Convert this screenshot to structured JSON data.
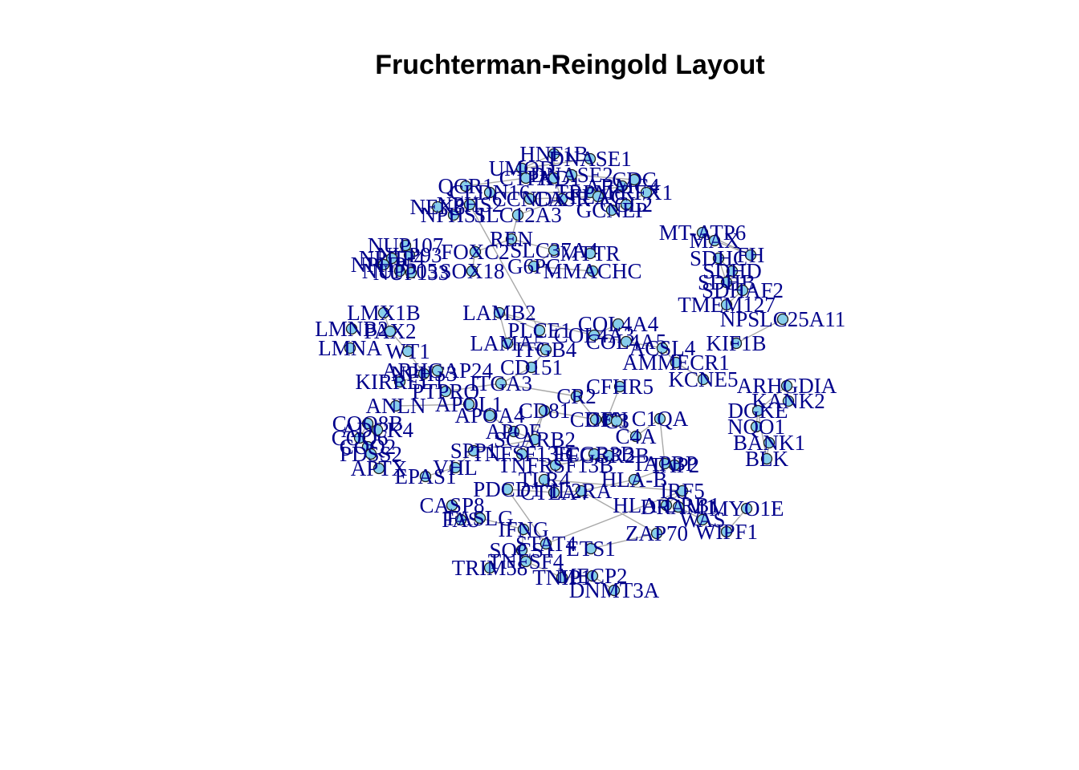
{
  "title": "Fruchterman-Reingold Layout",
  "colors": {
    "node_fill": "#87ceeb",
    "label": "#00008b",
    "edge": "#a8a8a8"
  },
  "nodes": [
    "HNF1B",
    "UMOD",
    "PKD1",
    "DNASE1",
    "DNASE2",
    "QCR1",
    "CLDN16",
    "CTPA",
    "TRPM6",
    "ARMC4",
    "SLC12A3",
    "CASR",
    "NPHS1",
    "NPHS2",
    "NEK8",
    "CCNDX",
    "FLAG",
    "RFX1",
    "CCL2",
    "GCNEP",
    "REN",
    "MT-ATP6",
    "NUP93",
    "NUP107",
    "NPHP4",
    "NPHP5",
    "NUP205",
    "NUP133",
    "FOXC2",
    "SLC37A4",
    "MMACHC",
    "MTTR",
    "G6PC",
    "SOX18",
    "PLCE1",
    "LMX1B",
    "LAMB2",
    "LMNB2",
    "LMNA",
    "PAX2",
    "WT1",
    "LAMA5",
    "ITGB4",
    "CD151",
    "COL4A4",
    "COL4A3",
    "COL4A5",
    "ACSL4",
    "AMMECR1",
    "KIF1B",
    "NPSLC25A11",
    "SDHD",
    "SDHB",
    "SDHC",
    "SDHAF2",
    "TMEM127",
    "FH",
    "MAX",
    "VHL",
    "EPAS1",
    "KIRREL1",
    "NPHS3",
    "ARHGAP24",
    "PTPRO",
    "ITGA3",
    "CFH",
    "CFHR5",
    "CR2",
    "CD81",
    "CD19",
    "C1QA",
    "C4A",
    "C3",
    "KCNE5",
    "ARHGDIA",
    "KANK2",
    "DGKE",
    "NQO1",
    "COQ2",
    "COQ6",
    "COQ8B",
    "ADCK4",
    "PDSS2",
    "APTX",
    "ANLN",
    "APOL1",
    "APOA4",
    "APOE",
    "SCARB2",
    "SPP1",
    "TNFSF13B",
    "TNFRSF13B",
    "FCGR2B",
    "FCGR3B",
    "TLR4",
    "TAP2",
    "TAPBP",
    "HLA-B",
    "HLA-DRB1",
    "PDCD1",
    "CTLA4",
    "IL2RA",
    "DRAM1",
    "WAS",
    "MYO1E",
    "WIPF1",
    "IRF5",
    "ZAP70",
    "IFNG",
    "SOCS1",
    "STAT4",
    "TRIM58",
    "CASP8",
    "FAS",
    "FASLG",
    "TNFSF4",
    "TNIP1",
    "MECP2",
    "DNMT3A",
    "BANK1",
    "BLK",
    "ETS1",
    "CDC"
  ]
}
